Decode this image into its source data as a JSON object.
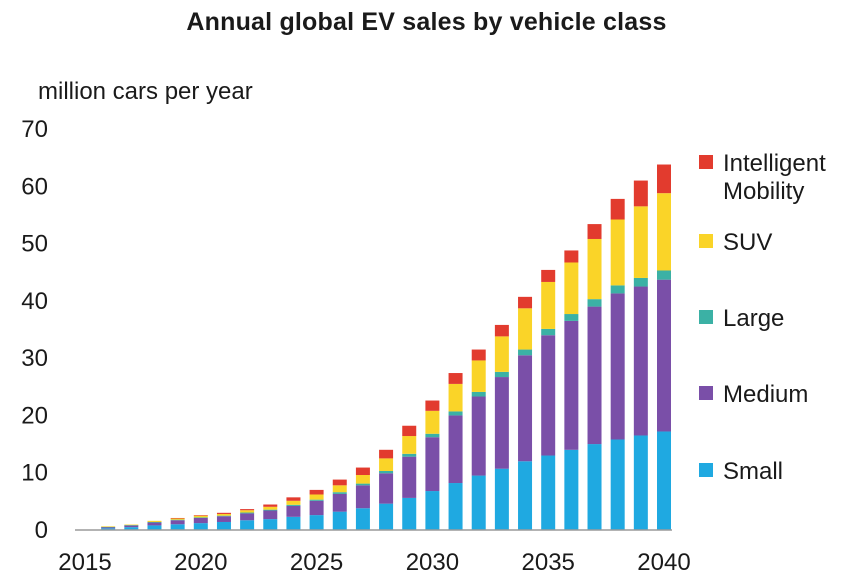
{
  "chart_data": {
    "type": "bar",
    "stacked": true,
    "title": "Annual global EV sales by vehicle class",
    "ylabel": "million cars per year",
    "xlabel": "",
    "ylim": [
      0,
      70
    ],
    "yticks": [
      0,
      10,
      20,
      30,
      40,
      50,
      60,
      70
    ],
    "xticks": [
      "2015",
      "2020",
      "2025",
      "2030",
      "2035",
      "2040"
    ],
    "grid": false,
    "legend_position": "right",
    "categories": [
      2016,
      2017,
      2018,
      2019,
      2020,
      2021,
      2022,
      2023,
      2024,
      2025,
      2026,
      2027,
      2028,
      2029,
      2030,
      2031,
      2032,
      2033,
      2034,
      2035,
      2036,
      2037,
      2038,
      2039,
      2040
    ],
    "series": [
      {
        "name": "Small",
        "color": "#1fa9e1",
        "values": [
          0.3,
          0.5,
          0.8,
          1.0,
          1.2,
          1.4,
          1.7,
          1.9,
          2.3,
          2.6,
          3.2,
          3.8,
          4.6,
          5.6,
          6.8,
          8.2,
          9.5,
          10.7,
          12.0,
          13.0,
          14.0,
          15.0,
          15.8,
          16.5,
          17.2
        ]
      },
      {
        "name": "Medium",
        "color": "#7a4fa8",
        "values": [
          0.2,
          0.3,
          0.5,
          0.7,
          0.9,
          1.0,
          1.2,
          1.5,
          1.9,
          2.5,
          3.1,
          4.0,
          5.3,
          7.2,
          9.4,
          11.8,
          13.8,
          16.0,
          18.5,
          21.0,
          22.5,
          24.0,
          25.5,
          26.0,
          26.5
        ]
      },
      {
        "name": "Large",
        "color": "#3bb1a5",
        "values": [
          0.05,
          0.05,
          0.1,
          0.1,
          0.1,
          0.1,
          0.15,
          0.15,
          0.2,
          0.2,
          0.3,
          0.3,
          0.4,
          0.5,
          0.6,
          0.7,
          0.8,
          0.9,
          1.0,
          1.1,
          1.2,
          1.3,
          1.4,
          1.5,
          1.6
        ]
      },
      {
        "name": "SUV",
        "color": "#fad428",
        "values": [
          0.1,
          0.1,
          0.2,
          0.2,
          0.3,
          0.3,
          0.4,
          0.5,
          0.7,
          0.9,
          1.2,
          1.5,
          2.2,
          3.1,
          4.0,
          4.8,
          5.5,
          6.2,
          7.2,
          8.2,
          9.0,
          10.5,
          11.5,
          12.5,
          13.5
        ]
      },
      {
        "name": "Intelligent Mobility",
        "color": "#e23b2e",
        "values": [
          0,
          0,
          0,
          0.1,
          0.1,
          0.2,
          0.2,
          0.4,
          0.6,
          0.8,
          1.0,
          1.3,
          1.5,
          1.8,
          1.8,
          1.9,
          1.9,
          2.0,
          2.0,
          2.1,
          2.1,
          2.6,
          3.6,
          4.5,
          5.0
        ]
      }
    ],
    "legend_order": [
      "Intelligent Mobility",
      "SUV",
      "Large",
      "Medium",
      "Small"
    ]
  }
}
